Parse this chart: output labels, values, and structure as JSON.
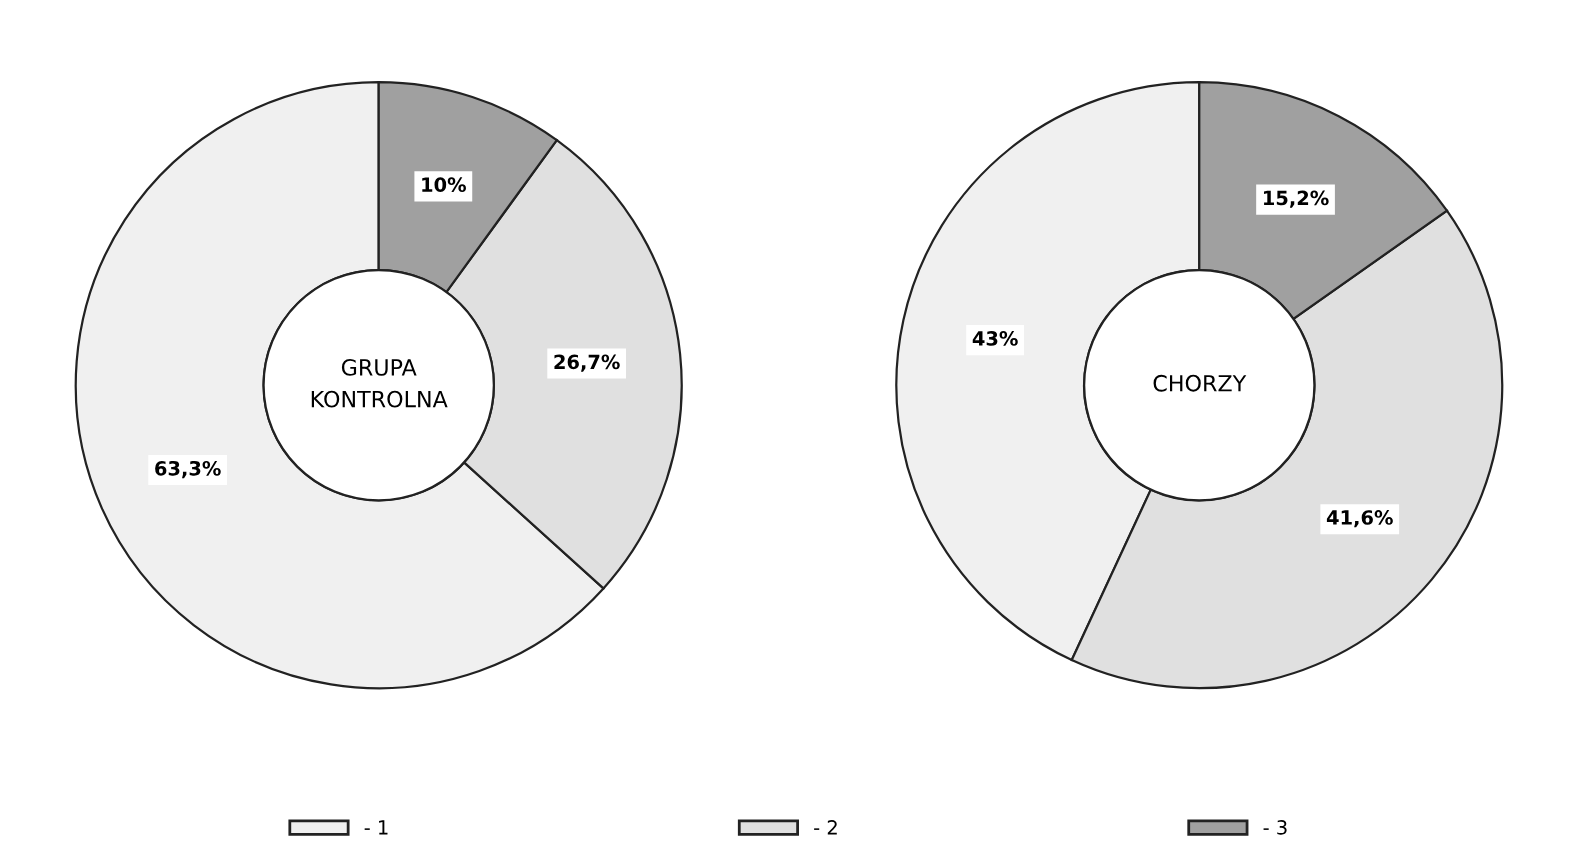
{
  "chart_data": [
    {
      "type": "donut",
      "title": "GRUPA\nKONTROLNA",
      "categories": [
        "- 1",
        "- 2",
        "- 3"
      ],
      "values": [
        63.3,
        26.7,
        10
      ],
      "value_labels": [
        "63,3%",
        "26,7%",
        "10%"
      ],
      "colors": [
        "#f0f0f0",
        "#e0e0e0",
        "#a0a0a0"
      ],
      "legend": "bottom"
    },
    {
      "type": "donut",
      "title": "CHORZY",
      "categories": [
        null,
        null,
        null
      ],
      "values": [
        43,
        41.6,
        15.2
      ],
      "value_labels": [
        "43%",
        "41,6%",
        "15,2%"
      ],
      "colors": [
        "#f0f0f0",
        "#e0e0e0",
        "#a0a0a0"
      ]
    }
  ]
}
